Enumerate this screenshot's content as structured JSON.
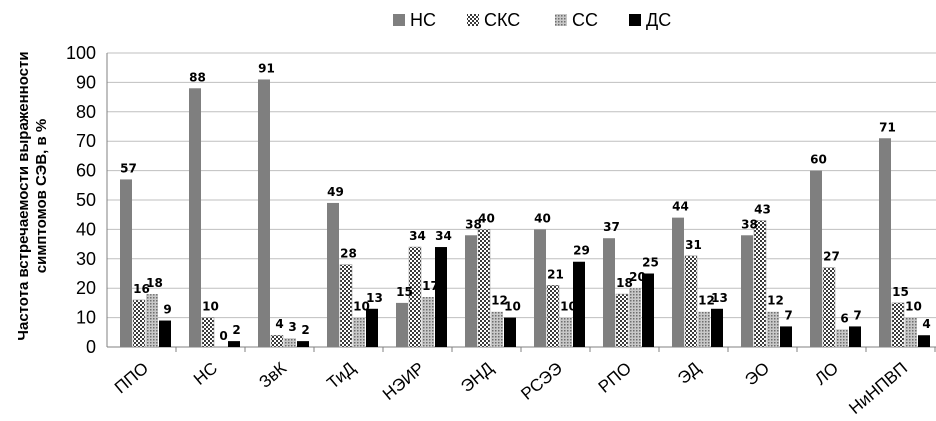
{
  "chart_data": {
    "type": "bar",
    "title": "",
    "xlabel": "",
    "ylabel": "Частота встречаемости выраженности симптомов СЭВ, в %",
    "ylim": [
      0,
      100
    ],
    "yticks": [
      0,
      10,
      20,
      30,
      40,
      50,
      60,
      70,
      80,
      90,
      100
    ],
    "grid": true,
    "legend_position": "top-center",
    "categories": [
      "ППО",
      "НС",
      "ЗвК",
      "ТиД",
      "НЭИР",
      "ЭНД",
      "РСЭЭ",
      "РПО",
      "ЭД",
      "ЭО",
      "ЛО",
      "НиНПВП"
    ],
    "series": [
      {
        "name": "НС",
        "color": "#7f7f7f",
        "pattern": "solid-gray",
        "values": [
          57,
          88,
          91,
          49,
          15,
          38,
          40,
          37,
          44,
          38,
          60,
          71
        ]
      },
      {
        "name": "СКС",
        "color": "#595959",
        "pattern": "checker",
        "values": [
          16,
          10,
          4,
          28,
          34,
          40,
          21,
          18,
          31,
          43,
          27,
          15
        ]
      },
      {
        "name": "СС",
        "color": "#a6a6a6",
        "pattern": "fine-dots",
        "values": [
          18,
          0,
          3,
          10,
          17,
          12,
          10,
          20,
          12,
          12,
          6,
          10
        ]
      },
      {
        "name": "ДС",
        "color": "#000000",
        "pattern": "solid-black",
        "values": [
          9,
          2,
          2,
          13,
          34,
          10,
          29,
          25,
          13,
          7,
          7,
          4
        ]
      }
    ]
  }
}
